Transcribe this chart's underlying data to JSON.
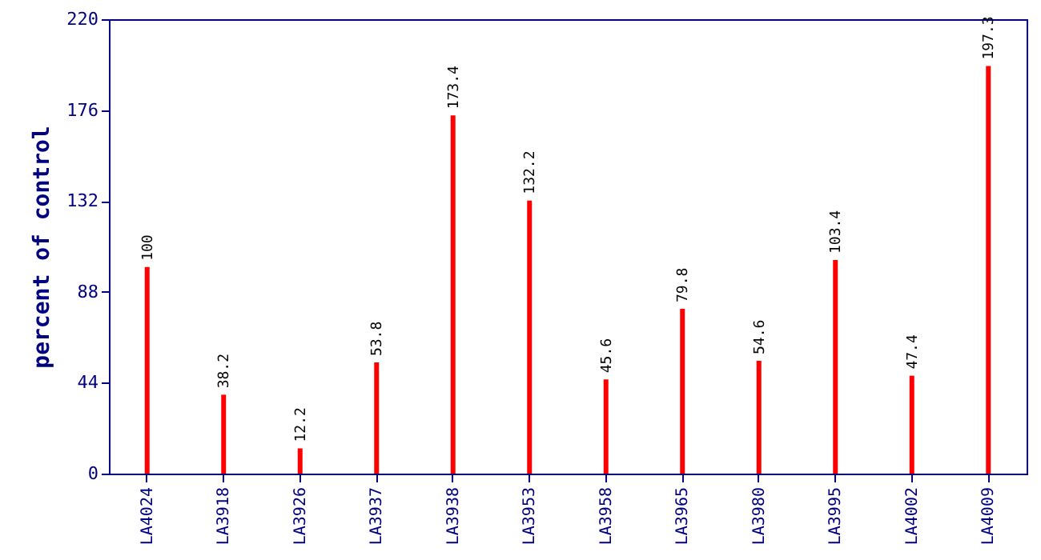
{
  "chart_data": {
    "type": "bar",
    "ylabel": "percent of control",
    "categories": [
      "LA4024",
      "LA3918",
      "LA3926",
      "LA3937",
      "LA3938",
      "LA3953",
      "LA3958",
      "LA3965",
      "LA3980",
      "LA3995",
      "LA4002",
      "LA4009"
    ],
    "values": [
      100,
      38.2,
      12.2,
      53.8,
      173.4,
      132.2,
      45.6,
      79.8,
      54.6,
      103.4,
      47.4,
      197.3
    ],
    "color": "#ff0000",
    "ylim": [
      0,
      220
    ],
    "yticks": [
      0,
      44,
      88,
      132,
      176,
      220
    ],
    "grid": false,
    "data_labels": true
  }
}
